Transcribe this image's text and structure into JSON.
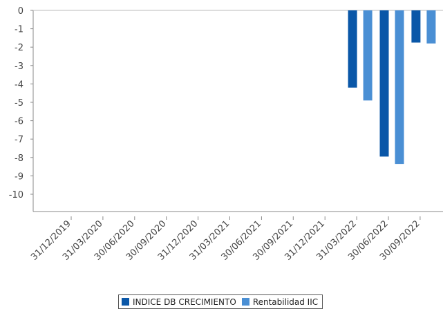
{
  "chart_data": {
    "type": "bar",
    "categories": [
      "31/12/2019",
      "31/03/2020",
      "30/06/2020",
      "30/09/2020",
      "31/12/2020",
      "31/03/2021",
      "30/06/2021",
      "30/09/2021",
      "31/12/2021",
      "31/03/2022",
      "30/06/2022",
      "30/09/2022"
    ],
    "series": [
      {
        "name": "INDICE DB CRECIMIENTO",
        "color": "#0a57a8",
        "values": [
          null,
          null,
          null,
          null,
          null,
          null,
          null,
          null,
          null,
          -4.2,
          -7.95,
          -1.75
        ]
      },
      {
        "name": "Rentabilidad IIC",
        "color": "#4a8fd4",
        "values": [
          null,
          null,
          null,
          null,
          null,
          null,
          null,
          null,
          null,
          -4.9,
          -8.35,
          -1.8
        ]
      }
    ],
    "y_ticks": [
      "0",
      "-1",
      "-2",
      "-3",
      "-4",
      "-5",
      "-6",
      "-7",
      "-8",
      "-9",
      "-10"
    ],
    "ylim": [
      -11,
      0
    ],
    "grid": false,
    "legend_position": "bottom-center"
  }
}
